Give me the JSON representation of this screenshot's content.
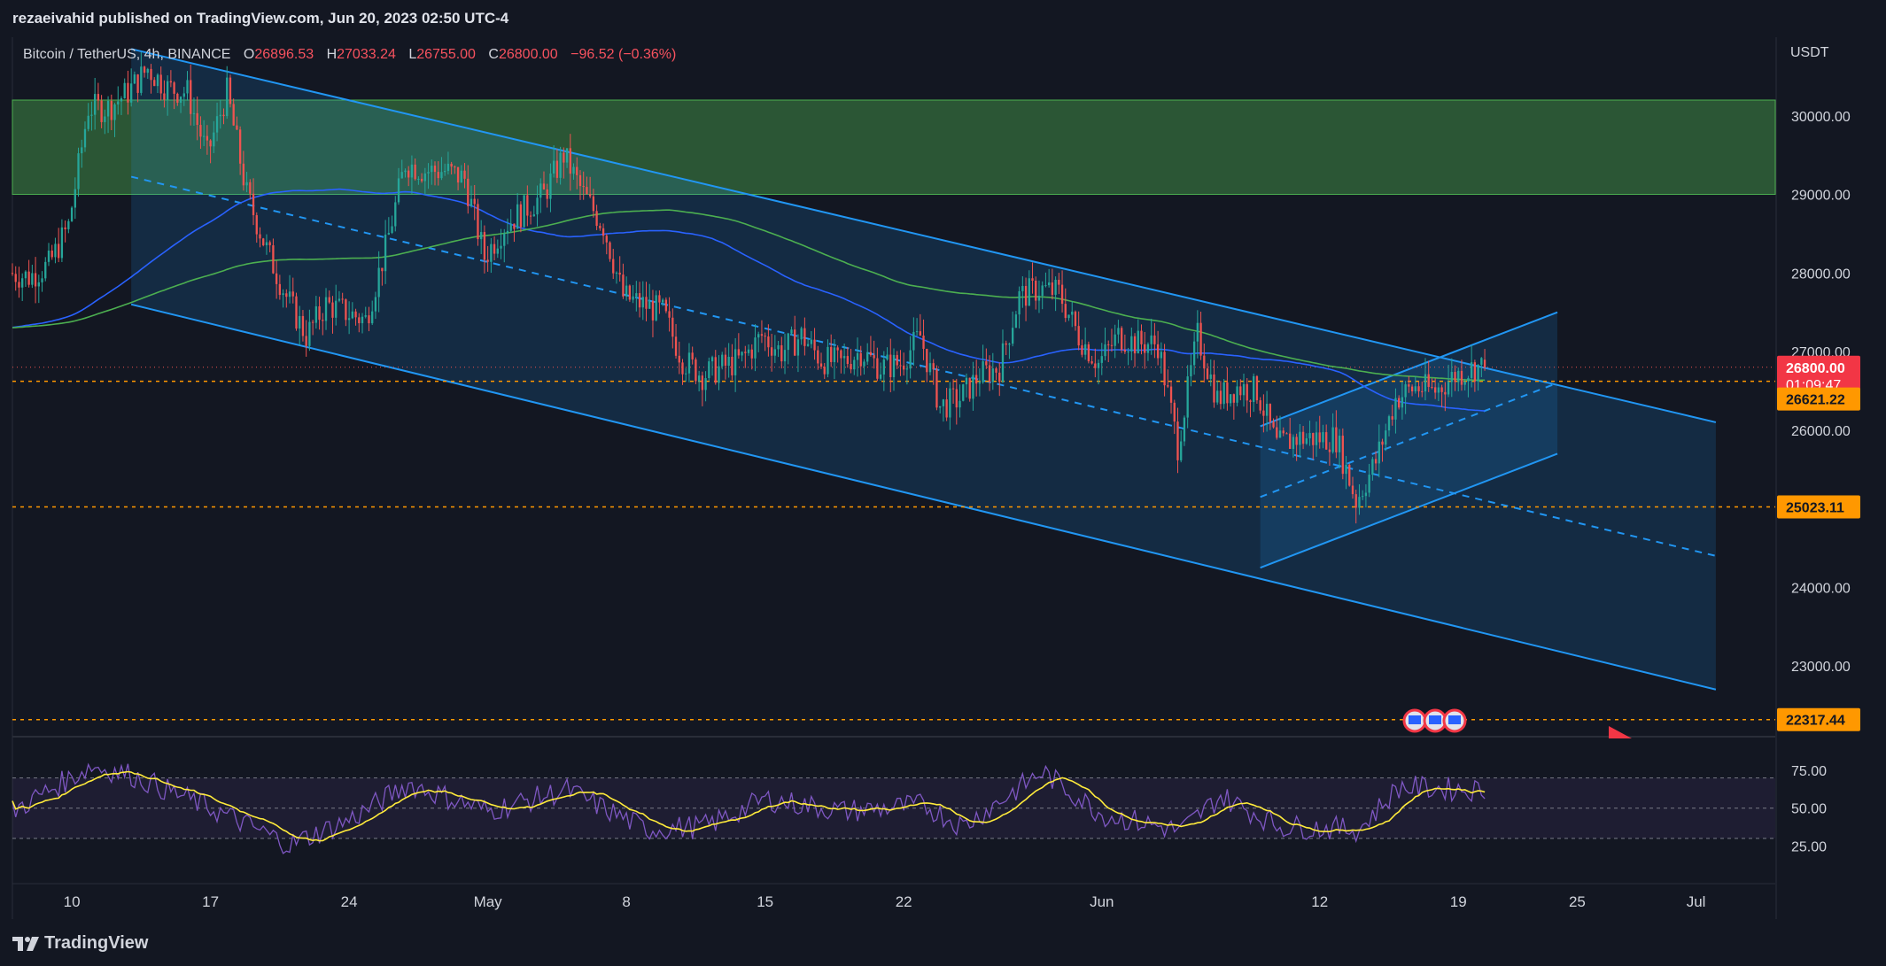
{
  "header": {
    "publish_line": "rezaeivahid published on TradingView.com, Jun 20, 2023 02:50 UTC-4"
  },
  "legend": {
    "symbol": "Bitcoin / TetherUS, 4h, BINANCE",
    "o_key": "O",
    "o_val": "26896.53",
    "h_key": "H",
    "h_val": "27033.24",
    "l_key": "L",
    "l_val": "26755.00",
    "c_key": "C",
    "c_val": "26800.00",
    "change": "−96.52 (−0.36%)"
  },
  "price_axis": {
    "currency": "USDT",
    "ticks": [
      "30000.00",
      "29000.00",
      "28000.00",
      "27000.00",
      "26000.00",
      "24000.00",
      "23000.00"
    ]
  },
  "price_labels": {
    "last_price": "26800.00",
    "countdown": "01:09:47",
    "level_1": "26621.22",
    "level_2": "25023.11",
    "level_3": "22317.44"
  },
  "rsi_axis": {
    "ticks": [
      "75.00",
      "50.00",
      "25.00"
    ]
  },
  "time_axis": {
    "labels": [
      "10",
      "17",
      "24",
      "May",
      "8",
      "15",
      "22",
      "Jun",
      "12",
      "19",
      "25",
      "Jul"
    ]
  },
  "footer": {
    "brand": "TradingView"
  },
  "colors": {
    "background": "#131722",
    "bull": "#26a69a",
    "bear": "#ef5350",
    "channel": "#2196f3",
    "supply_zone": "#4caf50",
    "level": "#ff9800",
    "ma_blue": "#2962ff",
    "ma_green": "#4caf50",
    "rsi": "#7e57c2",
    "rsi_ma": "#ffeb3b"
  },
  "chart_data": {
    "type": "candlestick",
    "symbol": "BTCUSDT",
    "interval": "4h",
    "y_range": [
      22100,
      31000
    ],
    "x_range": [
      "2023-04-07",
      "2023-07-05"
    ],
    "last": {
      "open": 26896.53,
      "high": 27033.24,
      "low": 26755.0,
      "close": 26800.0
    },
    "close_path": [
      [
        "2023-04-07",
        28000
      ],
      [
        "2023-04-08",
        27950
      ],
      [
        "2023-04-09",
        28100
      ],
      [
        "2023-04-10",
        28600
      ],
      [
        "2023-04-11",
        30100
      ],
      [
        "2023-04-12",
        30100
      ],
      [
        "2023-04-13",
        30300
      ],
      [
        "2023-04-14",
        30600
      ],
      [
        "2023-04-15",
        30350
      ],
      [
        "2023-04-16",
        30300
      ],
      [
        "2023-04-17",
        29500
      ],
      [
        "2023-04-18",
        30300
      ],
      [
        "2023-04-19",
        29000
      ],
      [
        "2023-04-20",
        28300
      ],
      [
        "2023-04-21",
        27700
      ],
      [
        "2023-04-22",
        27200
      ],
      [
        "2023-04-23",
        27600
      ],
      [
        "2023-04-24",
        27500
      ],
      [
        "2023-04-25",
        27400
      ],
      [
        "2023-04-26",
        28300
      ],
      [
        "2023-04-27",
        29400
      ],
      [
        "2023-04-28",
        29300
      ],
      [
        "2023-04-29",
        29300
      ],
      [
        "2023-04-30",
        29200
      ],
      [
        "2023-05-01",
        28200
      ],
      [
        "2023-05-02",
        28600
      ],
      [
        "2023-05-03",
        28800
      ],
      [
        "2023-05-04",
        29000
      ],
      [
        "2023-05-05",
        29500
      ],
      [
        "2023-05-06",
        29000
      ],
      [
        "2023-05-07",
        28600
      ],
      [
        "2023-05-08",
        27700
      ],
      [
        "2023-05-09",
        27600
      ],
      [
        "2023-05-10",
        27500
      ],
      [
        "2023-05-11",
        26900
      ],
      [
        "2023-05-12",
        26700
      ],
      [
        "2023-05-13",
        26800
      ],
      [
        "2023-05-14",
        26900
      ],
      [
        "2023-05-15",
        27200
      ],
      [
        "2023-05-16",
        27000
      ],
      [
        "2023-05-17",
        27200
      ],
      [
        "2023-05-18",
        26900
      ],
      [
        "2023-05-19",
        26850
      ],
      [
        "2023-05-20",
        27000
      ],
      [
        "2023-05-21",
        26800
      ],
      [
        "2023-05-22",
        26850
      ],
      [
        "2023-05-23",
        27200
      ],
      [
        "2023-05-24",
        26300
      ],
      [
        "2023-05-25",
        26400
      ],
      [
        "2023-05-26",
        26700
      ],
      [
        "2023-05-27",
        26800
      ],
      [
        "2023-05-28",
        27700
      ],
      [
        "2023-05-29",
        27800
      ],
      [
        "2023-05-30",
        27750
      ],
      [
        "2023-05-31",
        27200
      ],
      [
        "2023-06-01",
        26850
      ],
      [
        "2023-06-02",
        27200
      ],
      [
        "2023-06-03",
        27100
      ],
      [
        "2023-06-04",
        27100
      ],
      [
        "2023-06-05",
        25800
      ],
      [
        "2023-06-06",
        27200
      ],
      [
        "2023-06-07",
        26400
      ],
      [
        "2023-06-08",
        26550
      ],
      [
        "2023-06-09",
        26500
      ],
      [
        "2023-06-10",
        25800
      ],
      [
        "2023-06-11",
        25900
      ],
      [
        "2023-06-12",
        25900
      ],
      [
        "2023-06-13",
        25900
      ],
      [
        "2023-06-14",
        25100
      ],
      [
        "2023-06-15",
        25600
      ],
      [
        "2023-06-16",
        26400
      ],
      [
        "2023-06-17",
        26550
      ],
      [
        "2023-06-18",
        26500
      ],
      [
        "2023-06-19",
        26700
      ],
      [
        "2023-06-20",
        26800
      ]
    ],
    "levels": [
      26621.22,
      25023.11,
      22317.44
    ],
    "supply_zone": [
      29000,
      30200
    ],
    "descending_channel": {
      "upper": [
        [
          "2023-04-13",
          30850
        ],
        [
          "2023-07-02",
          26100
        ]
      ],
      "lower": [
        [
          "2023-04-13",
          27600
        ],
        [
          "2023-07-02",
          22700
        ]
      ],
      "mid": [
        [
          "2023-04-13",
          29350
        ],
        [
          "2023-07-02",
          24400
        ]
      ]
    },
    "rising_channel": {
      "upper": [
        [
          "2023-06-09",
          26050
        ],
        [
          "2023-06-24",
          27500
        ]
      ],
      "lower": [
        [
          "2023-06-09",
          24250
        ],
        [
          "2023-06-24",
          25700
        ]
      ]
    },
    "rsi": {
      "levels": [
        70,
        50,
        30
      ],
      "path": [
        [
          "2023-04-07",
          48
        ],
        [
          "2023-04-11",
          78
        ],
        [
          "2023-04-13",
          72
        ],
        [
          "2023-04-17",
          50
        ],
        [
          "2023-04-21",
          26
        ],
        [
          "2023-04-24",
          42
        ],
        [
          "2023-04-27",
          66
        ],
        [
          "2023-05-01",
          48
        ],
        [
          "2023-05-05",
          62
        ],
        [
          "2023-05-09",
          36
        ],
        [
          "2023-05-12",
          38
        ],
        [
          "2023-05-15",
          56
        ],
        [
          "2023-05-19",
          48
        ],
        [
          "2023-05-23",
          52
        ],
        [
          "2023-05-25",
          38
        ],
        [
          "2023-05-29",
          74
        ],
        [
          "2023-06-01",
          46
        ],
        [
          "2023-06-05",
          35
        ],
        [
          "2023-06-07",
          58
        ],
        [
          "2023-06-10",
          38
        ],
        [
          "2023-06-14",
          36
        ],
        [
          "2023-06-16",
          64
        ],
        [
          "2023-06-20",
          62
        ]
      ]
    }
  }
}
